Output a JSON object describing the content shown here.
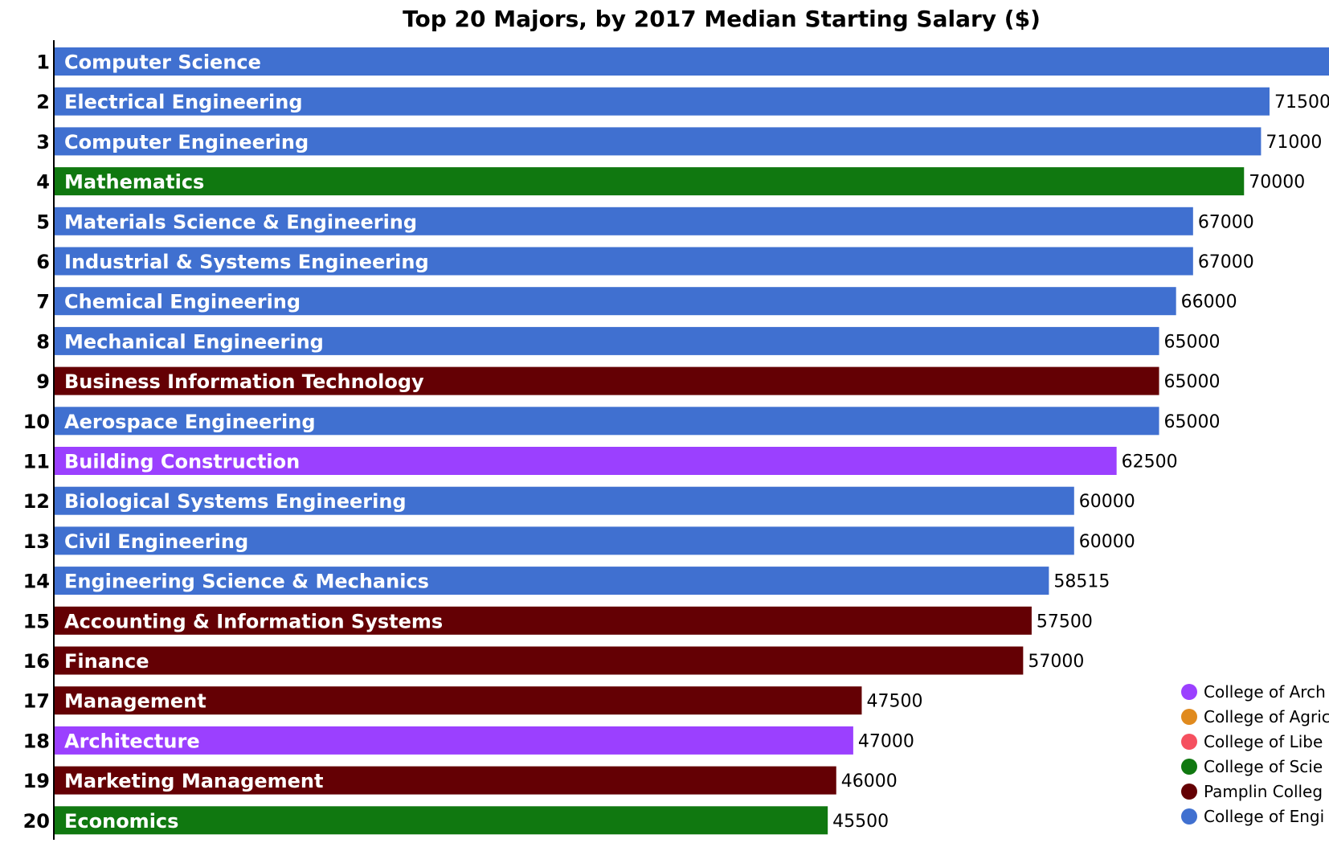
{
  "chart_data": {
    "type": "bar",
    "orientation": "horizontal",
    "title": "Top 20 Majors, by 2017 Median Starting Salary ($)",
    "xlabel": "",
    "ylabel": "",
    "xlim": [
      0,
      72000
    ],
    "grid": false,
    "legend_position": "bottom-right",
    "bars": [
      {
        "rank": "1",
        "label": "Computer Science",
        "value": 75000,
        "value_label": "",
        "college": "College of Engineering"
      },
      {
        "rank": "2",
        "label": "Electrical Engineering",
        "value": 71500,
        "value_label": "71500",
        "college": "College of Engineering"
      },
      {
        "rank": "3",
        "label": "Computer Engineering",
        "value": 71000,
        "value_label": "71000",
        "college": "College of Engineering"
      },
      {
        "rank": "4",
        "label": "Mathematics",
        "value": 70000,
        "value_label": "70000",
        "college": "College of Science"
      },
      {
        "rank": "5",
        "label": "Materials Science & Engineering",
        "value": 67000,
        "value_label": "67000",
        "college": "College of Engineering"
      },
      {
        "rank": "6",
        "label": "Industrial & Systems Engineering",
        "value": 67000,
        "value_label": "67000",
        "college": "College of Engineering"
      },
      {
        "rank": "7",
        "label": "Chemical Engineering",
        "value": 66000,
        "value_label": "66000",
        "college": "College of Engineering"
      },
      {
        "rank": "8",
        "label": "Mechanical Engineering",
        "value": 65000,
        "value_label": "65000",
        "college": "College of Engineering"
      },
      {
        "rank": "9",
        "label": "Business Information Technology",
        "value": 65000,
        "value_label": "65000",
        "college": "Pamplin College"
      },
      {
        "rank": "10",
        "label": "Aerospace Engineering",
        "value": 65000,
        "value_label": "65000",
        "college": "College of Engineering"
      },
      {
        "rank": "11",
        "label": "Building Construction",
        "value": 62500,
        "value_label": "62500",
        "college": "College of Architecture"
      },
      {
        "rank": "12",
        "label": "Biological Systems Engineering",
        "value": 60000,
        "value_label": "60000",
        "college": "College of Engineering"
      },
      {
        "rank": "13",
        "label": "Civil Engineering",
        "value": 60000,
        "value_label": "60000",
        "college": "College of Engineering"
      },
      {
        "rank": "14",
        "label": "Engineering Science & Mechanics",
        "value": 58515,
        "value_label": "58515",
        "college": "College of Engineering"
      },
      {
        "rank": "15",
        "label": "Accounting & Information Systems",
        "value": 57500,
        "value_label": "57500",
        "college": "Pamplin College"
      },
      {
        "rank": "16",
        "label": "Finance",
        "value": 57000,
        "value_label": "57000",
        "college": "Pamplin College"
      },
      {
        "rank": "17",
        "label": "Management",
        "value": 47500,
        "value_label": "47500",
        "college": "Pamplin College"
      },
      {
        "rank": "18",
        "label": "Architecture",
        "value": 47000,
        "value_label": "47000",
        "college": "College of Architecture"
      },
      {
        "rank": "19",
        "label": "Marketing Management",
        "value": 46000,
        "value_label": "46000",
        "college": "Pamplin College"
      },
      {
        "rank": "20",
        "label": "Economics",
        "value": 45500,
        "value_label": "45500",
        "college": "College of Science"
      }
    ],
    "legend": [
      {
        "name": "College of Arch",
        "key": "College of Architecture",
        "color": "#9b40ff"
      },
      {
        "name": "College of Agric",
        "key": "College of Agriculture",
        "color": "#e08a1e"
      },
      {
        "name": "College of Libe",
        "key": "College of Liberal Arts",
        "color": "#f5505f"
      },
      {
        "name": "College of Scie",
        "key": "College of Science",
        "color": "#107810"
      },
      {
        "name": "Pamplin Colleg",
        "key": "Pamplin College",
        "color": "#640004"
      },
      {
        "name": "College of Engi",
        "key": "College of Engineering",
        "color": "#4070d0"
      }
    ]
  }
}
